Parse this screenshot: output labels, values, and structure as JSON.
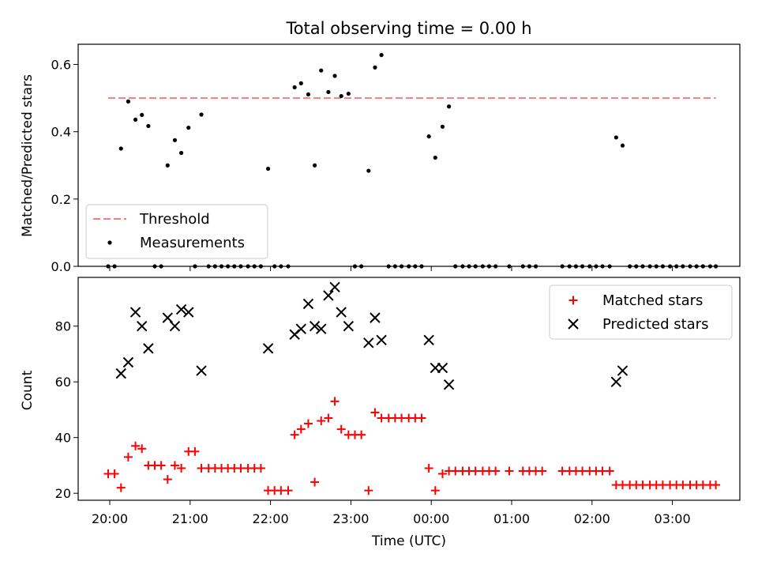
{
  "chart_data": [
    {
      "type": "scatter",
      "title": "Total observing time = 0.00 h",
      "xlabel": "",
      "ylabel": "Matched/Predicted stars",
      "ylim": [
        0.0,
        0.66
      ],
      "yticks": [
        "0.0",
        "0.2",
        "0.4",
        "0.6"
      ],
      "ytick_values": [
        0.0,
        0.2,
        0.4,
        0.6
      ],
      "legend_position": "lower-left",
      "threshold": {
        "name": "Threshold",
        "value": 0.5,
        "x_start": -0.02,
        "x_end": 7.54,
        "color": "#f08080"
      },
      "series": [
        {
          "name": "Measurements",
          "color": "#000000",
          "points": [
            [
              -0.02,
              0.0
            ],
            [
              0.06,
              0.0
            ],
            [
              0.14,
              0.35
            ],
            [
              0.23,
              0.49
            ],
            [
              0.32,
              0.436
            ],
            [
              0.4,
              0.45
            ],
            [
              0.48,
              0.417
            ],
            [
              0.56,
              0.0
            ],
            [
              0.64,
              0.0
            ],
            [
              0.72,
              0.3
            ],
            [
              0.81,
              0.375
            ],
            [
              0.89,
              0.337
            ],
            [
              0.98,
              0.412
            ],
            [
              1.06,
              0.0
            ],
            [
              1.14,
              0.451
            ],
            [
              1.23,
              0.0
            ],
            [
              1.31,
              0.0
            ],
            [
              1.39,
              0.0
            ],
            [
              1.47,
              0.0
            ],
            [
              1.55,
              0.0
            ],
            [
              1.63,
              0.0
            ],
            [
              1.72,
              0.0
            ],
            [
              1.8,
              0.0
            ],
            [
              1.88,
              0.0
            ],
            [
              1.97,
              0.29
            ],
            [
              2.05,
              0.0
            ],
            [
              2.13,
              0.0
            ],
            [
              2.22,
              0.0
            ],
            [
              2.3,
              0.532
            ],
            [
              2.38,
              0.544
            ],
            [
              2.47,
              0.511
            ],
            [
              2.55,
              0.3
            ],
            [
              2.63,
              0.582
            ],
            [
              2.72,
              0.518
            ],
            [
              2.8,
              0.566
            ],
            [
              2.88,
              0.506
            ],
            [
              2.97,
              0.513
            ],
            [
              3.05,
              0.0
            ],
            [
              3.13,
              0.0
            ],
            [
              3.22,
              0.284
            ],
            [
              3.3,
              0.591
            ],
            [
              3.38,
              0.628
            ],
            [
              3.47,
              0.0
            ],
            [
              3.55,
              0.0
            ],
            [
              3.63,
              0.0
            ],
            [
              3.72,
              0.0
            ],
            [
              3.8,
              0.0
            ],
            [
              3.88,
              0.0
            ],
            [
              3.97,
              0.386
            ],
            [
              4.05,
              0.323
            ],
            [
              4.14,
              0.415
            ],
            [
              4.22,
              0.475
            ],
            [
              4.3,
              0.0
            ],
            [
              4.39,
              0.0
            ],
            [
              4.47,
              0.0
            ],
            [
              4.55,
              0.0
            ],
            [
              4.64,
              0.0
            ],
            [
              4.72,
              0.0
            ],
            [
              4.8,
              0.0
            ],
            [
              4.97,
              0.0
            ],
            [
              5.14,
              0.0
            ],
            [
              5.22,
              0.0
            ],
            [
              5.3,
              0.0
            ],
            [
              5.63,
              0.0
            ],
            [
              5.72,
              0.0
            ],
            [
              5.8,
              0.0
            ],
            [
              5.88,
              0.0
            ],
            [
              5.97,
              0.0
            ],
            [
              6.05,
              0.0
            ],
            [
              6.13,
              0.0
            ],
            [
              6.22,
              0.0
            ],
            [
              6.3,
              0.383
            ],
            [
              6.38,
              0.359
            ],
            [
              6.47,
              0.0
            ],
            [
              6.55,
              0.0
            ],
            [
              6.63,
              0.0
            ],
            [
              6.72,
              0.0
            ],
            [
              6.8,
              0.0
            ],
            [
              6.88,
              0.0
            ],
            [
              6.97,
              0.0
            ],
            [
              7.05,
              0.0
            ],
            [
              7.13,
              0.0
            ],
            [
              7.22,
              0.0
            ],
            [
              7.3,
              0.0
            ],
            [
              7.38,
              0.0
            ],
            [
              7.47,
              0.0
            ],
            [
              7.54,
              0.0
            ]
          ]
        }
      ]
    },
    {
      "type": "scatter",
      "title": "",
      "xlabel": "Time (UTC)",
      "ylabel": "Count",
      "ylim": [
        17.5,
        97.5
      ],
      "yticks": [
        "20",
        "40",
        "60",
        "80"
      ],
      "ytick_values": [
        20,
        40,
        60,
        80
      ],
      "x_axis_origin": "20:00",
      "x_unit": "hours after 20:00 UTC",
      "xlim": [
        -0.38,
        7.9
      ],
      "xticks": [
        "20:00",
        "21:00",
        "22:00",
        "23:00",
        "00:00",
        "01:00",
        "02:00",
        "03:00"
      ],
      "xtick_values": [
        0,
        1,
        2,
        3,
        4,
        5,
        6,
        7
      ],
      "legend_position": "upper-right",
      "series": [
        {
          "name": "Matched stars",
          "marker": "plus",
          "color": "#ff0000",
          "points": [
            [
              -0.02,
              27
            ],
            [
              0.06,
              27
            ],
            [
              0.14,
              22
            ],
            [
              0.23,
              33
            ],
            [
              0.32,
              37
            ],
            [
              0.4,
              36
            ],
            [
              0.48,
              30
            ],
            [
              0.56,
              30
            ],
            [
              0.64,
              30
            ],
            [
              0.72,
              25
            ],
            [
              0.81,
              30
            ],
            [
              0.89,
              29
            ],
            [
              0.98,
              35
            ],
            [
              1.06,
              35
            ],
            [
              1.14,
              29
            ],
            [
              1.23,
              29
            ],
            [
              1.31,
              29
            ],
            [
              1.39,
              29
            ],
            [
              1.47,
              29
            ],
            [
              1.55,
              29
            ],
            [
              1.63,
              29
            ],
            [
              1.72,
              29
            ],
            [
              1.8,
              29
            ],
            [
              1.88,
              29
            ],
            [
              1.97,
              21
            ],
            [
              2.05,
              21
            ],
            [
              2.13,
              21
            ],
            [
              2.22,
              21
            ],
            [
              2.3,
              41
            ],
            [
              2.38,
              43
            ],
            [
              2.47,
              45
            ],
            [
              2.55,
              24
            ],
            [
              2.63,
              46
            ],
            [
              2.72,
              47
            ],
            [
              2.8,
              53
            ],
            [
              2.88,
              43
            ],
            [
              2.97,
              41
            ],
            [
              3.05,
              41
            ],
            [
              3.13,
              41
            ],
            [
              3.22,
              21
            ],
            [
              3.3,
              49
            ],
            [
              3.38,
              47
            ],
            [
              3.47,
              47
            ],
            [
              3.55,
              47
            ],
            [
              3.63,
              47
            ],
            [
              3.72,
              47
            ],
            [
              3.8,
              47
            ],
            [
              3.88,
              47
            ],
            [
              3.97,
              29
            ],
            [
              4.05,
              21
            ],
            [
              4.14,
              27
            ],
            [
              4.22,
              28
            ],
            [
              4.3,
              28
            ],
            [
              4.39,
              28
            ],
            [
              4.47,
              28
            ],
            [
              4.55,
              28
            ],
            [
              4.64,
              28
            ],
            [
              4.72,
              28
            ],
            [
              4.8,
              28
            ],
            [
              4.97,
              28
            ],
            [
              5.14,
              28
            ],
            [
              5.22,
              28
            ],
            [
              5.3,
              28
            ],
            [
              5.38,
              28
            ],
            [
              5.63,
              28
            ],
            [
              5.72,
              28
            ],
            [
              5.8,
              28
            ],
            [
              5.88,
              28
            ],
            [
              5.97,
              28
            ],
            [
              6.05,
              28
            ],
            [
              6.13,
              28
            ],
            [
              6.22,
              28
            ],
            [
              6.3,
              23
            ],
            [
              6.38,
              23
            ],
            [
              6.47,
              23
            ],
            [
              6.55,
              23
            ],
            [
              6.63,
              23
            ],
            [
              6.72,
              23
            ],
            [
              6.8,
              23
            ],
            [
              6.88,
              23
            ],
            [
              6.97,
              23
            ],
            [
              7.05,
              23
            ],
            [
              7.13,
              23
            ],
            [
              7.22,
              23
            ],
            [
              7.3,
              23
            ],
            [
              7.38,
              23
            ],
            [
              7.47,
              23
            ],
            [
              7.54,
              23
            ]
          ]
        },
        {
          "name": "Predicted stars",
          "marker": "x",
          "color": "#000000",
          "points": [
            [
              0.14,
              63
            ],
            [
              0.23,
              67
            ],
            [
              0.32,
              85
            ],
            [
              0.4,
              80
            ],
            [
              0.48,
              72
            ],
            [
              0.72,
              83
            ],
            [
              0.81,
              80
            ],
            [
              0.89,
              86
            ],
            [
              0.98,
              85
            ],
            [
              1.14,
              64
            ],
            [
              1.97,
              72
            ],
            [
              2.3,
              77
            ],
            [
              2.38,
              79
            ],
            [
              2.47,
              88
            ],
            [
              2.55,
              80
            ],
            [
              2.63,
              79
            ],
            [
              2.72,
              91
            ],
            [
              2.8,
              94
            ],
            [
              2.88,
              85
            ],
            [
              2.97,
              80
            ],
            [
              3.22,
              74
            ],
            [
              3.3,
              83
            ],
            [
              3.38,
              75
            ],
            [
              3.97,
              75
            ],
            [
              4.05,
              65
            ],
            [
              4.14,
              65
            ],
            [
              4.22,
              59
            ],
            [
              6.3,
              60
            ],
            [
              6.38,
              64
            ]
          ]
        }
      ]
    }
  ]
}
